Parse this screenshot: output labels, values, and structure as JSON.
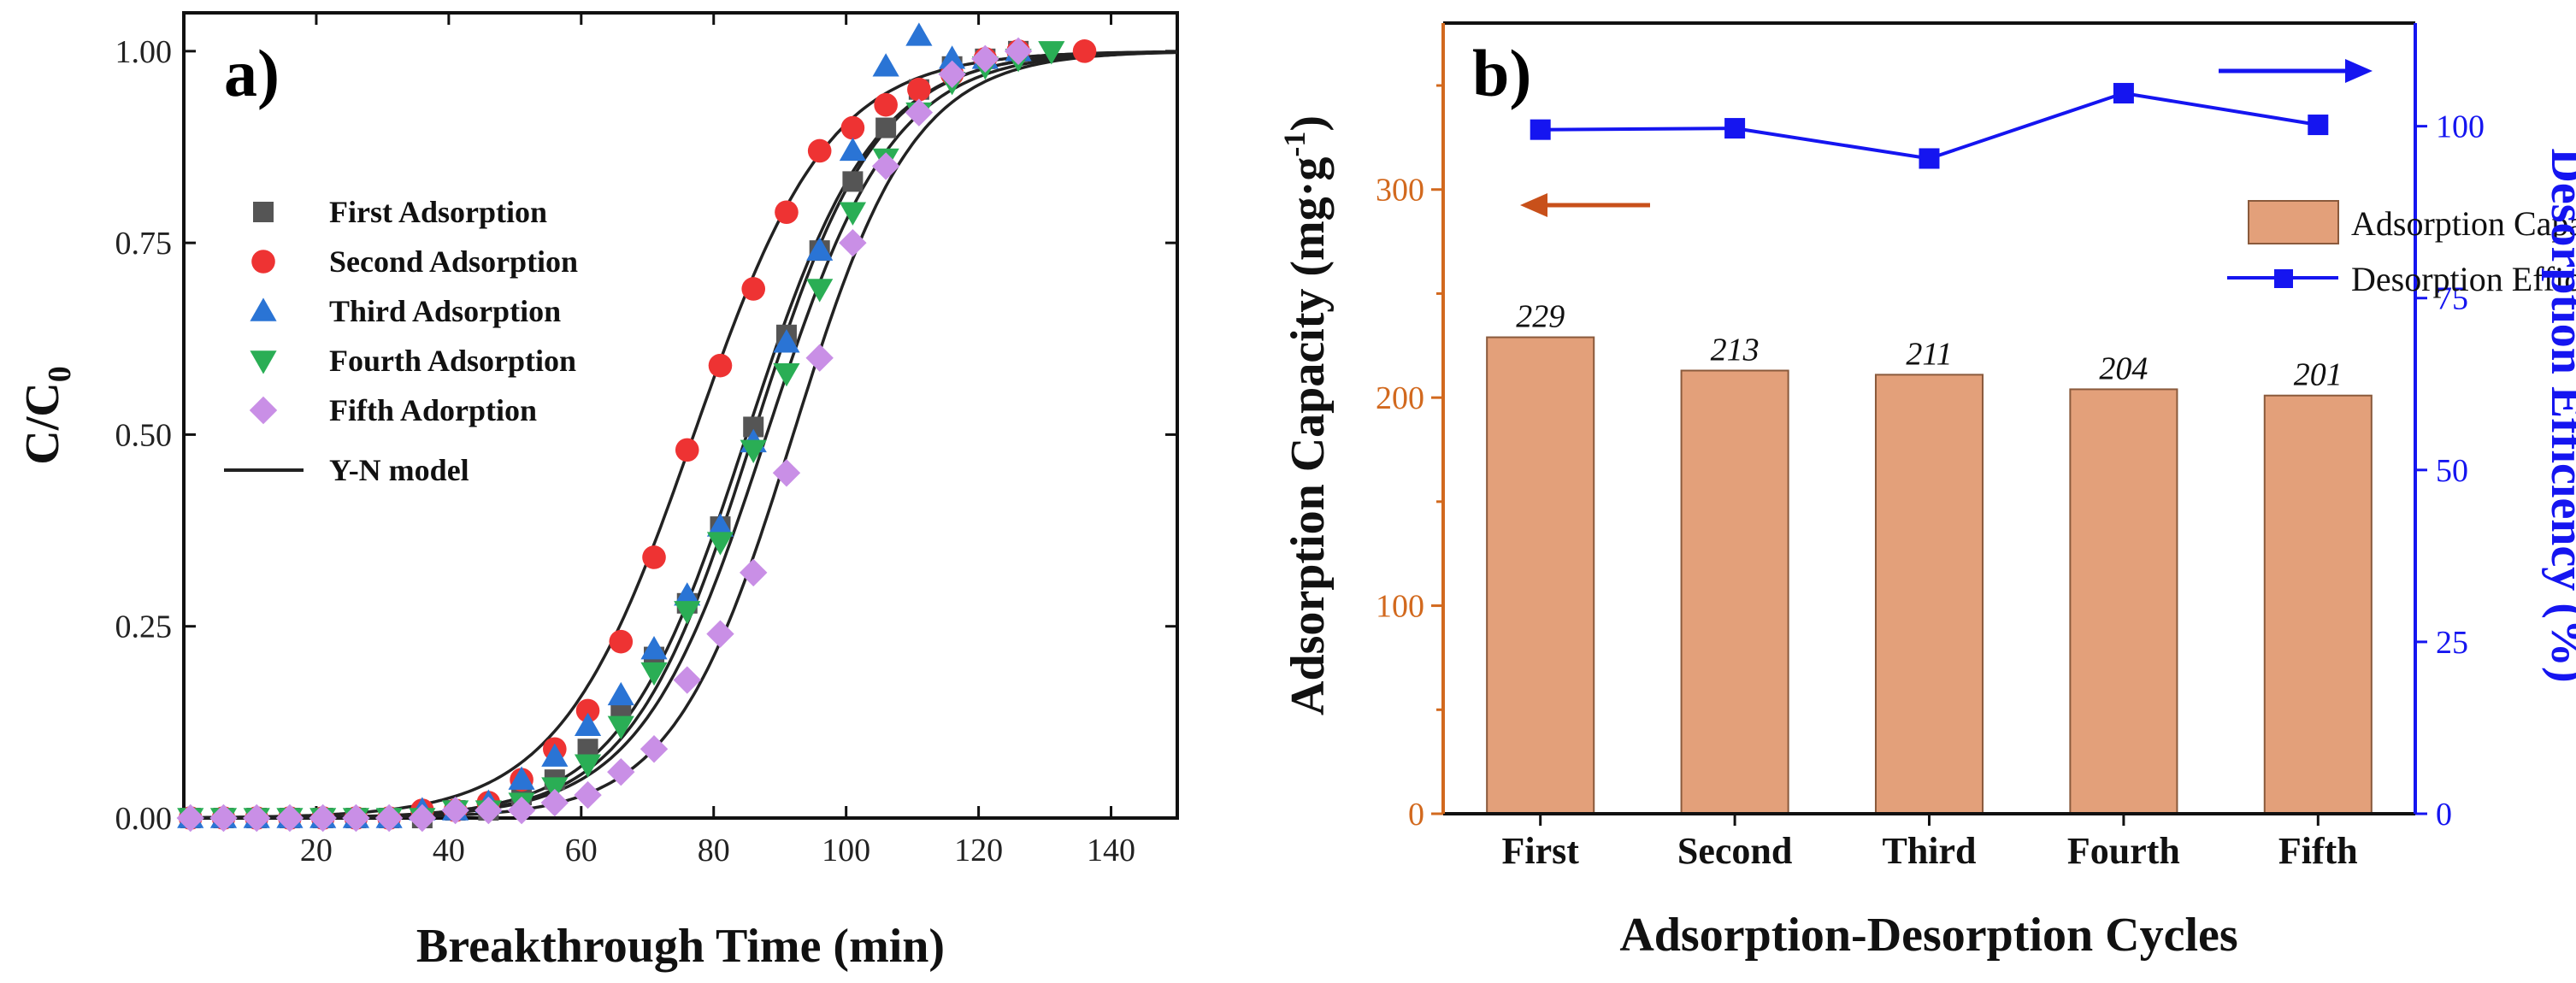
{
  "chart_data": [
    {
      "type": "scatter",
      "panel": "a)",
      "xlabel": "Breakthrough Time (min)",
      "ylabel_main": "C/C",
      "ylabel_sub": "0",
      "xlim": [
        0,
        150
      ],
      "ylim": [
        0,
        1.05
      ],
      "xticks": [
        20,
        40,
        60,
        80,
        100,
        120,
        140
      ],
      "yticks": [
        0.0,
        0.25,
        0.5,
        0.75,
        1.0
      ],
      "ytick_labels": [
        "0.00",
        "0.25",
        "0.50",
        "0.75",
        "1.00"
      ],
      "legend_position": "center-left",
      "series": [
        {
          "name": "First Adsorption",
          "marker": "square",
          "color": "#555555",
          "x": [
            1,
            6,
            11,
            16,
            21,
            26,
            31,
            36,
            41,
            46,
            51,
            56,
            61,
            66,
            71,
            76,
            81,
            86,
            91,
            96,
            101,
            106,
            111,
            116,
            121,
            126
          ],
          "y": [
            0.0,
            0.0,
            0.0,
            0.0,
            0.0,
            0.0,
            0.0,
            0.0,
            0.01,
            0.01,
            0.03,
            0.05,
            0.09,
            0.14,
            0.21,
            0.28,
            0.38,
            0.51,
            0.63,
            0.74,
            0.83,
            0.9,
            0.95,
            0.98,
            0.99,
            1.0
          ],
          "fit_t50": 86,
          "fit_k": 0.108
        },
        {
          "name": "Second Adsorption",
          "marker": "circle",
          "color": "#EE3333",
          "x": [
            1,
            6,
            11,
            16,
            21,
            26,
            31,
            36,
            41,
            46,
            51,
            56,
            61,
            66,
            71,
            76,
            81,
            86,
            91,
            96,
            101,
            106,
            111,
            116,
            121,
            126,
            136
          ],
          "y": [
            0.0,
            0.0,
            0.0,
            0.0,
            0.0,
            0.0,
            0.0,
            0.01,
            0.01,
            0.02,
            0.05,
            0.09,
            0.14,
            0.23,
            0.34,
            0.48,
            0.59,
            0.69,
            0.79,
            0.87,
            0.9,
            0.93,
            0.95,
            0.97,
            0.99,
            1.0,
            1.0
          ],
          "fit_t50": 77,
          "fit_k": 0.098
        },
        {
          "name": "Third Adsorption",
          "marker": "triangle-up",
          "color": "#2A74D5",
          "x": [
            1,
            6,
            11,
            16,
            21,
            26,
            31,
            36,
            41,
            46,
            51,
            56,
            61,
            66,
            71,
            76,
            81,
            86,
            91,
            96,
            101,
            106,
            111,
            116,
            121,
            126
          ],
          "y": [
            0.0,
            0.0,
            0.0,
            0.0,
            0.0,
            0.0,
            0.0,
            0.01,
            0.01,
            0.02,
            0.05,
            0.08,
            0.12,
            0.16,
            0.22,
            0.29,
            0.38,
            0.49,
            0.62,
            0.74,
            0.87,
            0.98,
            1.02,
            0.99,
            0.99,
            1.0
          ],
          "fit_t50": 85,
          "fit_k": 0.105
        },
        {
          "name": "Fourth Adsorption",
          "marker": "triangle-down",
          "color": "#2AAE55",
          "x": [
            1,
            6,
            11,
            16,
            21,
            26,
            31,
            36,
            41,
            46,
            51,
            56,
            61,
            66,
            71,
            76,
            81,
            86,
            91,
            96,
            101,
            106,
            111,
            116,
            121,
            126,
            131
          ],
          "y": [
            0.0,
            0.0,
            0.0,
            0.0,
            0.0,
            0.0,
            0.0,
            0.0,
            0.01,
            0.01,
            0.02,
            0.04,
            0.07,
            0.12,
            0.19,
            0.27,
            0.36,
            0.48,
            0.58,
            0.69,
            0.79,
            0.86,
            0.92,
            0.96,
            0.98,
            0.99,
            1.0
          ],
          "fit_t50": 88,
          "fit_k": 0.105
        },
        {
          "name": "Fifth Adorption",
          "marker": "diamond",
          "color": "#C98FE6",
          "x": [
            1,
            6,
            11,
            16,
            21,
            26,
            31,
            36,
            41,
            46,
            51,
            56,
            61,
            66,
            71,
            76,
            81,
            86,
            91,
            96,
            101,
            106,
            111,
            116,
            121,
            126
          ],
          "y": [
            0.0,
            0.0,
            0.0,
            0.0,
            0.0,
            0.0,
            0.0,
            0.0,
            0.01,
            0.01,
            0.01,
            0.02,
            0.03,
            0.06,
            0.09,
            0.18,
            0.24,
            0.32,
            0.45,
            0.6,
            0.75,
            0.85,
            0.92,
            0.97,
            0.99,
            1.0
          ],
          "fit_t50": 92,
          "fit_k": 0.11
        }
      ],
      "fit_line_label": "Y-N model",
      "fit_line_color": "#222222"
    },
    {
      "type": "bar",
      "panel": "b)",
      "xlabel": "Adsorption-Desorption Cycles",
      "categories": [
        "First",
        "Second",
        "Third",
        "Fourth",
        "Fifth"
      ],
      "bar_series": {
        "name": "Adsorption Capacity",
        "values": [
          229,
          213,
          211,
          204,
          201
        ],
        "color": "#E3A07A",
        "axis": "left"
      },
      "line_series": {
        "name": "Desorption Efficiency",
        "values": [
          99.5,
          99.7,
          95.3,
          104.8,
          100.2
        ],
        "color": "#1515F0",
        "axis": "right"
      },
      "ylabel_left_main": "Adsorption Capacity (mg·g",
      "ylabel_left_sup": "-1",
      "ylabel_left_end": ")",
      "ylabel_right": "Desorption Efficiency (%)",
      "ylim_left": [
        0,
        380
      ],
      "ylim_right": [
        0,
        115
      ],
      "yticks_left": [
        0,
        100,
        200,
        300
      ],
      "yticks_right": [
        0,
        25,
        50,
        75,
        100
      ],
      "left_axis_color": "#D2691E",
      "right_axis_color": "#1515F0",
      "legend_position": "top-right"
    }
  ]
}
